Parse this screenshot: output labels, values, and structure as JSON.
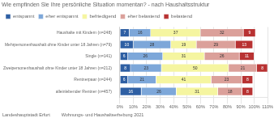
{
  "chart_data": {
    "type": "bar",
    "orientation": "horizontal",
    "stacked": true,
    "title": "Wie empfinden Sie Ihre persönliche Situation momentan? - nach Haushaltsstruktur",
    "annotations": [
      "Landeshauptstadt Erfurt",
      "Wohnungs- und Haushaltserhebung 2021"
    ],
    "categories": [
      "Haushalte mit Kindern (n=248)",
      "Mehrpersonenhaushalt ohne Kinder unter 18 Jahren (n=79)",
      "Single (n=141)",
      "Zweipersonenhaushalt ohne Kinder unter 18 Jahren (n=212)",
      "Rentnerpaar (n=244)",
      "alleinlebender Rentner (n=457)"
    ],
    "series": [
      {
        "name": "entspannt",
        "color": "#2e5fa3",
        "values": [
          7,
          10,
          6,
          8,
          6,
          16
        ]
      },
      {
        "name": "eher entspannt",
        "color": "#7da7d9",
        "values": [
          16,
          28,
          26,
          23,
          21,
          26
        ]
      },
      {
        "name": "befriedigend",
        "color": "#f5f5a0",
        "values": [
          37,
          19,
          31,
          50,
          41,
          31
        ]
      },
      {
        "name": "eher belastend",
        "color": "#dba09a",
        "values": [
          32,
          29,
          26,
          21,
          23,
          18
        ]
      },
      {
        "name": "belastend",
        "color": "#b83232",
        "values": [
          9,
          13,
          11,
          8,
          8,
          8
        ]
      }
    ],
    "xlim": [
      0,
      110
    ],
    "xticks": [
      {
        "value": 0,
        "label": "0%"
      },
      {
        "value": 10,
        "label": "10%"
      },
      {
        "value": 20,
        "label": "20%"
      },
      {
        "value": 30,
        "label": "30%"
      },
      {
        "value": 40,
        "label": "40%"
      },
      {
        "value": 50,
        "label": "50%"
      },
      {
        "value": 60,
        "label": "60%"
      },
      {
        "value": 70,
        "label": "70%"
      },
      {
        "value": 80,
        "label": "80%"
      },
      {
        "value": 90,
        "label": "90%"
      },
      {
        "value": 100,
        "label": "100%"
      },
      {
        "value": 110,
        "label": "110%"
      }
    ],
    "grid": true,
    "legend": "top",
    "data_labels": true
  }
}
